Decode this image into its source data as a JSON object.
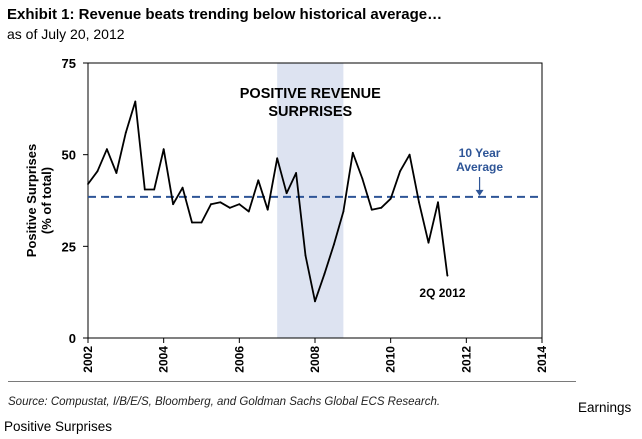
{
  "header": {
    "title": "Exhibit 1: Revenue beats trending below historical average…",
    "subtitle": "as of July 20, 2012"
  },
  "chart_data": {
    "type": "line",
    "title": "",
    "xlabel": "",
    "ylabel": [
      "Positive Surprises",
      "(% of total)"
    ],
    "xlim": [
      2002,
      2014
    ],
    "ylim": [
      0,
      75
    ],
    "x_ticks": [
      2002,
      2004,
      2006,
      2008,
      2010,
      2012,
      2014
    ],
    "y_ticks": [
      0,
      25,
      50,
      75
    ],
    "grid": false,
    "series": [
      {
        "name": "Positive Surprises",
        "color": "#000000",
        "x": [
          2002.0,
          2002.25,
          2002.5,
          2002.75,
          2003.0,
          2003.25,
          2003.5,
          2003.75,
          2004.0,
          2004.25,
          2004.5,
          2004.75,
          2005.0,
          2005.25,
          2005.5,
          2005.75,
          2006.0,
          2006.25,
          2006.5,
          2006.75,
          2007.0,
          2007.25,
          2007.5,
          2007.75,
          2008.0,
          2008.25,
          2008.5,
          2008.75,
          2009.0,
          2009.25,
          2009.5,
          2009.75,
          2010.0,
          2010.25,
          2010.5,
          2010.75,
          2011.0,
          2011.25,
          2011.5
        ],
        "y": [
          42,
          45.5,
          51.5,
          45,
          56,
          64.5,
          40.5,
          40.5,
          51.5,
          36.5,
          41,
          31.5,
          31.5,
          36.5,
          37,
          35.5,
          36.5,
          34.5,
          43,
          35,
          49,
          39.5,
          45,
          22.5,
          10,
          17.5,
          25.5,
          34.5,
          50.5,
          43.5,
          35,
          35.5,
          38,
          45.5,
          50,
          37,
          26,
          37,
          17
        ]
      },
      {
        "name": "10 Year Average",
        "color": "#2e5597",
        "style": "dashed",
        "value": 38.5
      }
    ],
    "shaded_regions": [
      {
        "x_start": 2007.0,
        "x_end": 2008.75,
        "label_lines": [
          "POSITIVE REVENUE",
          "SURPRISES"
        ]
      }
    ],
    "annotations": [
      {
        "text_lines": [
          "10 Year",
          "Average"
        ],
        "x": 2012.35,
        "y": 38.5,
        "color": "#2e5597",
        "arrow": true
      },
      {
        "text": "2Q 2012",
        "x": 2011.5,
        "y": 17
      }
    ]
  },
  "footer": {
    "source": "Source: Compustat, I/B/E/S, Bloomberg, and Goldman Sachs Global ECS Research.",
    "right_label": "Earnings",
    "left_label": "Positive Surprises"
  }
}
